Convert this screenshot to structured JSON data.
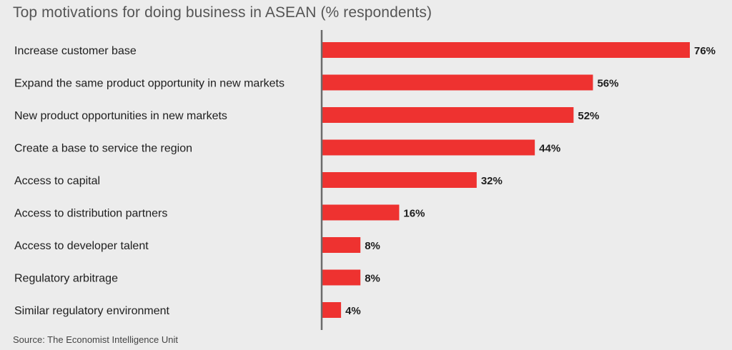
{
  "chart_data": {
    "type": "bar",
    "orientation": "horizontal",
    "title": "Top motivations for doing business in ASEAN (% respondents)",
    "source": "Source: The Economist Intelligence Unit",
    "categories": [
      "Increase customer base",
      "Expand the same product opportunity in new markets",
      "New product opportunities in new markets",
      "Create a base to service the region",
      "Access to capital",
      "Access to distribution partners",
      "Access to developer talent",
      "Regulatory arbitrage",
      "Similar regulatory environment"
    ],
    "values": [
      76,
      56,
      52,
      44,
      32,
      16,
      8,
      8,
      4
    ],
    "value_labels": [
      "76%",
      "56%",
      "52%",
      "44%",
      "32%",
      "16%",
      "8%",
      "8%",
      "4%"
    ],
    "xlim": [
      0,
      76
    ],
    "grid": false,
    "legend": "none",
    "colors": {
      "bar": "#ee3230",
      "axis": "#6b6b6b",
      "background": "#ececec"
    }
  }
}
